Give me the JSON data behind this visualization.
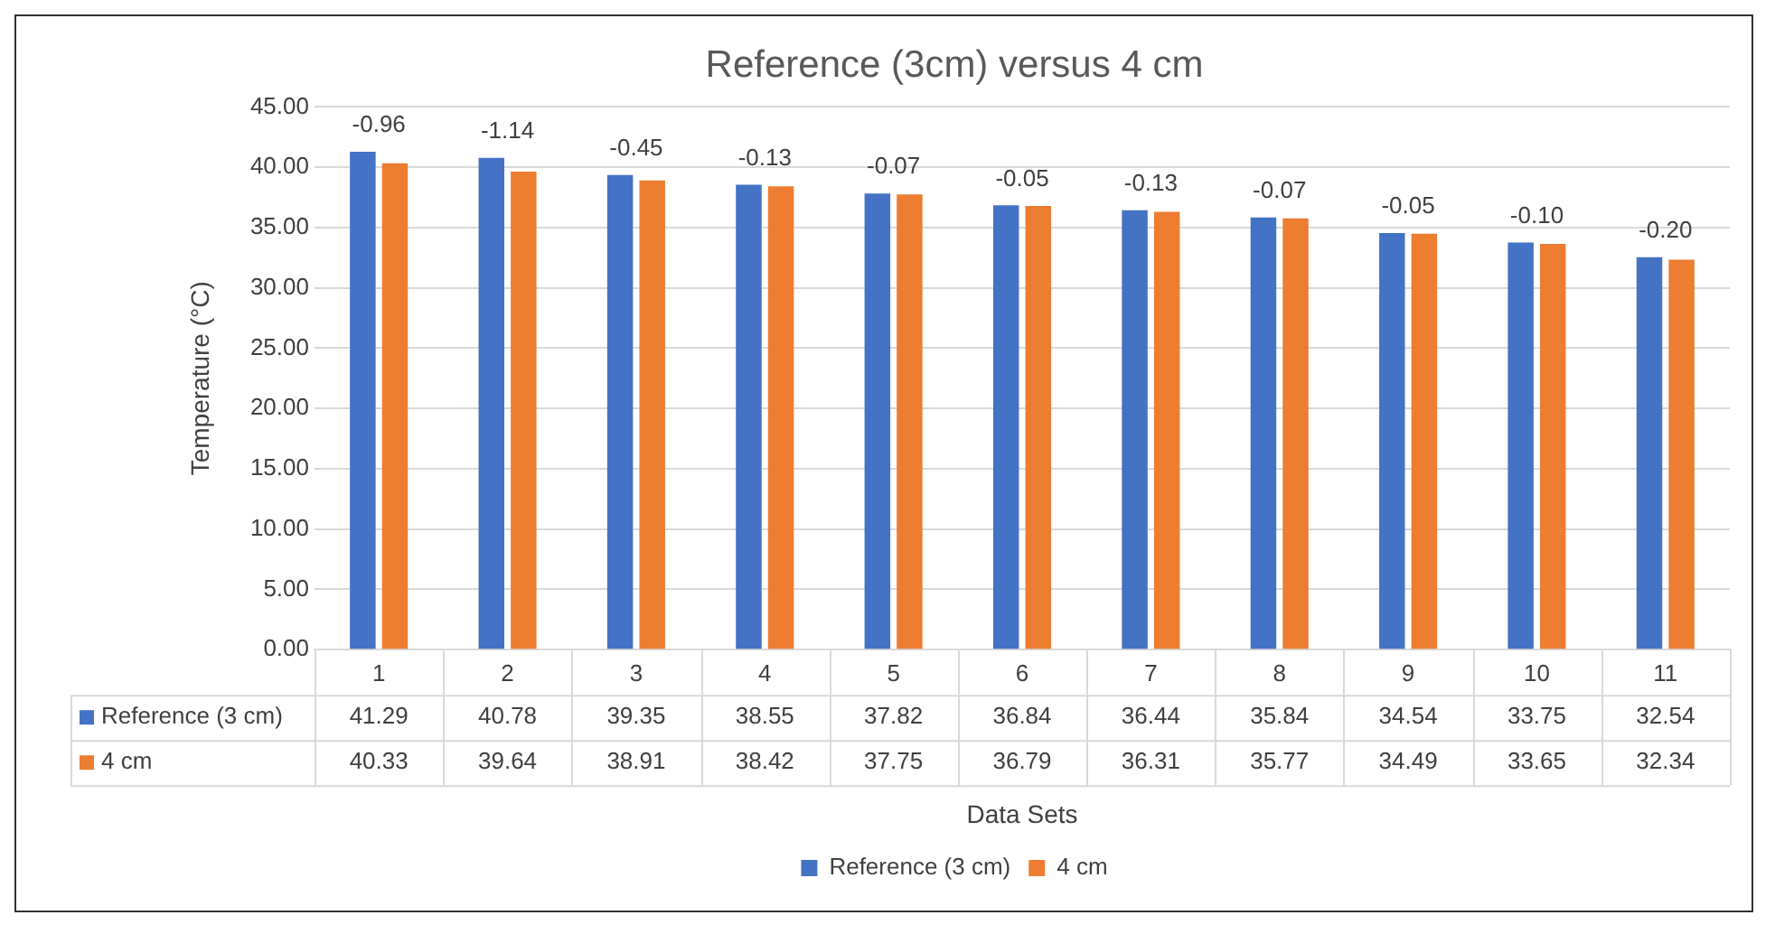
{
  "chart_data": {
    "type": "bar",
    "title": "Reference (3cm) versus 4 cm",
    "xlabel": "Data Sets",
    "ylabel": "Temperature (°C)",
    "categories": [
      "1",
      "2",
      "3",
      "4",
      "5",
      "6",
      "7",
      "8",
      "9",
      "10",
      "11"
    ],
    "series": [
      {
        "name": "Reference (3 cm)",
        "color": "#4472c4",
        "values": [
          41.29,
          40.78,
          39.35,
          38.55,
          37.82,
          36.84,
          36.44,
          35.84,
          34.54,
          33.75,
          32.54
        ]
      },
      {
        "name": "4 cm",
        "color": "#ed7d31",
        "values": [
          40.33,
          39.64,
          38.91,
          38.42,
          37.75,
          36.79,
          36.31,
          35.77,
          34.49,
          33.65,
          32.34
        ]
      }
    ],
    "ylim": [
      0,
      45
    ],
    "yticks": [
      {
        "value": 0,
        "label": "0.00"
      },
      {
        "value": 5,
        "label": "5.00"
      },
      {
        "value": 10,
        "label": "10.00"
      },
      {
        "value": 15,
        "label": "15.00"
      },
      {
        "value": 20,
        "label": "20.00"
      },
      {
        "value": 25,
        "label": "25.00"
      },
      {
        "value": 30,
        "label": "30.00"
      },
      {
        "value": 35,
        "label": "35.00"
      },
      {
        "value": 40,
        "label": "40.00"
      },
      {
        "value": 45,
        "label": "45.00"
      }
    ],
    "grid": "y",
    "legend": "bottom",
    "data_labels": true,
    "annotations": [
      {
        "text": "-0.96",
        "x": "1",
        "y": 41.29
      },
      {
        "text": "-1.14",
        "x": "2",
        "y": 40.78
      },
      {
        "text": "-0.45",
        "x": "3",
        "y": 39.35
      },
      {
        "text": "-0.13",
        "x": "4",
        "y": 38.55
      },
      {
        "text": "-0.07",
        "x": "5",
        "y": 37.82
      },
      {
        "text": "-0.05",
        "x": "6",
        "y": 36.84
      },
      {
        "text": "-0.13",
        "x": "7",
        "y": 36.44
      },
      {
        "text": "-0.07",
        "x": "8",
        "y": 35.84
      },
      {
        "text": "-0.05",
        "x": "9",
        "y": 34.54
      },
      {
        "text": "-0.10",
        "x": "10",
        "y": 33.75
      },
      {
        "text": "-0.20",
        "x": "11",
        "y": 32.54
      }
    ]
  }
}
